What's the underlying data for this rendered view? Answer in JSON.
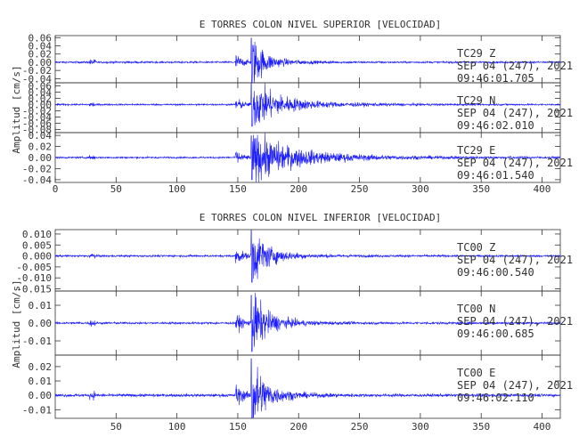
{
  "colors": {
    "trace": "#1a1aff",
    "axis": "#333333",
    "text": "#333333"
  },
  "chart_data": [
    {
      "type": "line",
      "title": "E TORRES COLON NIVEL SUPERIOR [VELOCIDAD]",
      "ylabel": "Amplitud [cm/s]",
      "xlabel": "",
      "xlim": [
        0,
        415
      ],
      "x_ticks": [
        "0",
        "50",
        "100",
        "150",
        "200",
        "250",
        "300",
        "350",
        "400"
      ],
      "grid": false,
      "panels": [
        {
          "component": "Z",
          "station": "TC29   Z",
          "date": "SEP 04 (247), 2021",
          "time": "09:46:01.705",
          "ylim": [
            -0.05,
            0.065
          ],
          "y_ticks": [
            "0.06",
            "0.04",
            "0.02",
            "0.00",
            "-0.02",
            "-0.04"
          ],
          "approx_peak_cm_s": 0.06,
          "p_arrival_s": 148,
          "s_arrival_s": 161,
          "decay_s": 25
        },
        {
          "component": "N",
          "station": "TC29   N",
          "date": "SEP 04 (247), 2021",
          "time": "09:46:02.010",
          "ylim": [
            -0.09,
            0.07
          ],
          "y_ticks": [
            "0.06",
            "0.04",
            "0.02",
            "0.00",
            "-0.02",
            "-0.04",
            "-0.06",
            "-0.08"
          ],
          "approx_peak_cm_s": 0.07,
          "p_arrival_s": 148,
          "s_arrival_s": 161,
          "decay_s": 55
        },
        {
          "component": "E",
          "station": "TC29   E",
          "date": "SEP 04 (247), 2021",
          "time": "09:46:01.540",
          "ylim": [
            -0.045,
            0.045
          ],
          "y_ticks": [
            "0.04",
            "0.02",
            "0.00",
            "-0.02",
            "-0.04"
          ],
          "approx_peak_cm_s": 0.04,
          "p_arrival_s": 148,
          "s_arrival_s": 161,
          "decay_s": 80
        }
      ]
    },
    {
      "type": "line",
      "title": "E TORRES COLON NIVEL INFERIOR [VELOCIDAD]",
      "ylabel": "Amplitud [cm/s]",
      "xlabel": "",
      "xlim": [
        0,
        415
      ],
      "x_ticks": [
        "50",
        "100",
        "150",
        "200",
        "250",
        "300",
        "350",
        "400"
      ],
      "grid": false,
      "panels": [
        {
          "component": "Z",
          "station": "TC00   Z",
          "date": "SEP 04 (247), 2021",
          "time": "09:46:00.540",
          "ylim": [
            -0.016,
            0.012
          ],
          "y_ticks": [
            "0.010",
            "0.005",
            "0.000",
            "-0.005",
            "-0.010",
            "-0.015"
          ],
          "approx_peak_cm_s": 0.012,
          "p_arrival_s": 148,
          "s_arrival_s": 161,
          "decay_s": 30
        },
        {
          "component": "N",
          "station": "TC00   N",
          "date": "SEP 04 (247), 2021",
          "time": "09:46:00.685",
          "ylim": [
            -0.018,
            0.018
          ],
          "y_ticks": [
            "0.01",
            "0.00",
            "-0.01"
          ],
          "approx_peak_cm_s": 0.016,
          "p_arrival_s": 148,
          "s_arrival_s": 161,
          "decay_s": 30
        },
        {
          "component": "E",
          "station": "TC00   E",
          "date": "SEP 04 (247), 2021",
          "time": "09:46:02.110",
          "ylim": [
            -0.016,
            0.028
          ],
          "y_ticks": [
            "0.02",
            "0.01",
            "0.00",
            "-0.01"
          ],
          "approx_peak_cm_s": 0.026,
          "p_arrival_s": 148,
          "s_arrival_s": 161,
          "decay_s": 25
        }
      ]
    }
  ]
}
